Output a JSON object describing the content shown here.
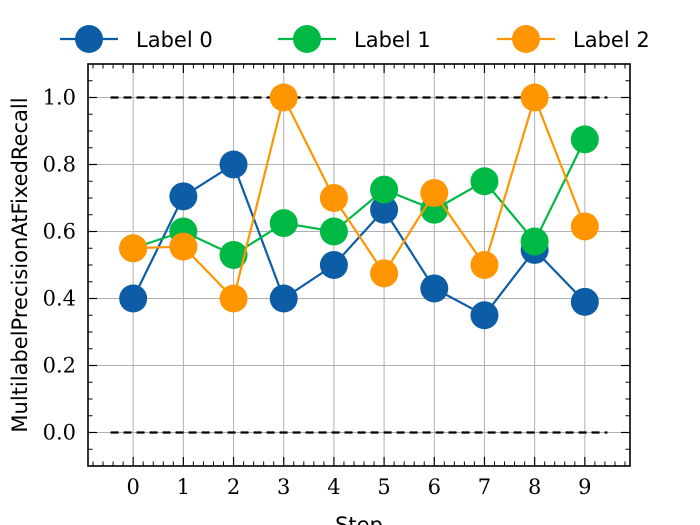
{
  "chart_data": {
    "type": "line",
    "x": [
      0,
      1,
      2,
      3,
      4,
      5,
      6,
      7,
      8,
      9
    ],
    "series": [
      {
        "name": "Label 0",
        "color": "#0C5DA5",
        "values": [
          0.4,
          0.705,
          0.8,
          0.4,
          0.5,
          0.665,
          0.43,
          0.35,
          0.545,
          0.39
        ]
      },
      {
        "name": "Label 1",
        "color": "#00B945",
        "values": [
          0.55,
          0.6,
          0.53,
          0.625,
          0.6,
          0.725,
          0.665,
          0.75,
          0.57,
          0.875
        ]
      },
      {
        "name": "Label 2",
        "color": "#FF9500",
        "values": [
          0.55,
          0.555,
          0.4,
          1.0,
          0.7,
          0.475,
          0.715,
          0.5,
          1.0,
          0.615
        ]
      }
    ],
    "reference_lines": [
      1.0,
      0.0
    ],
    "xlabel": "Step",
    "ylabel": "MultilabelPrecisionAtFixedRecall",
    "xlim": [
      -0.9,
      9.9
    ],
    "ylim": [
      -0.1,
      1.1
    ],
    "xticks": [
      "0",
      "1",
      "2",
      "3",
      "4",
      "5",
      "6",
      "7",
      "8",
      "9"
    ],
    "yticks": [
      "0.0",
      "0.2",
      "0.4",
      "0.6",
      "0.8",
      "1.0"
    ],
    "grid": true,
    "legend_position": "top, above plot"
  }
}
